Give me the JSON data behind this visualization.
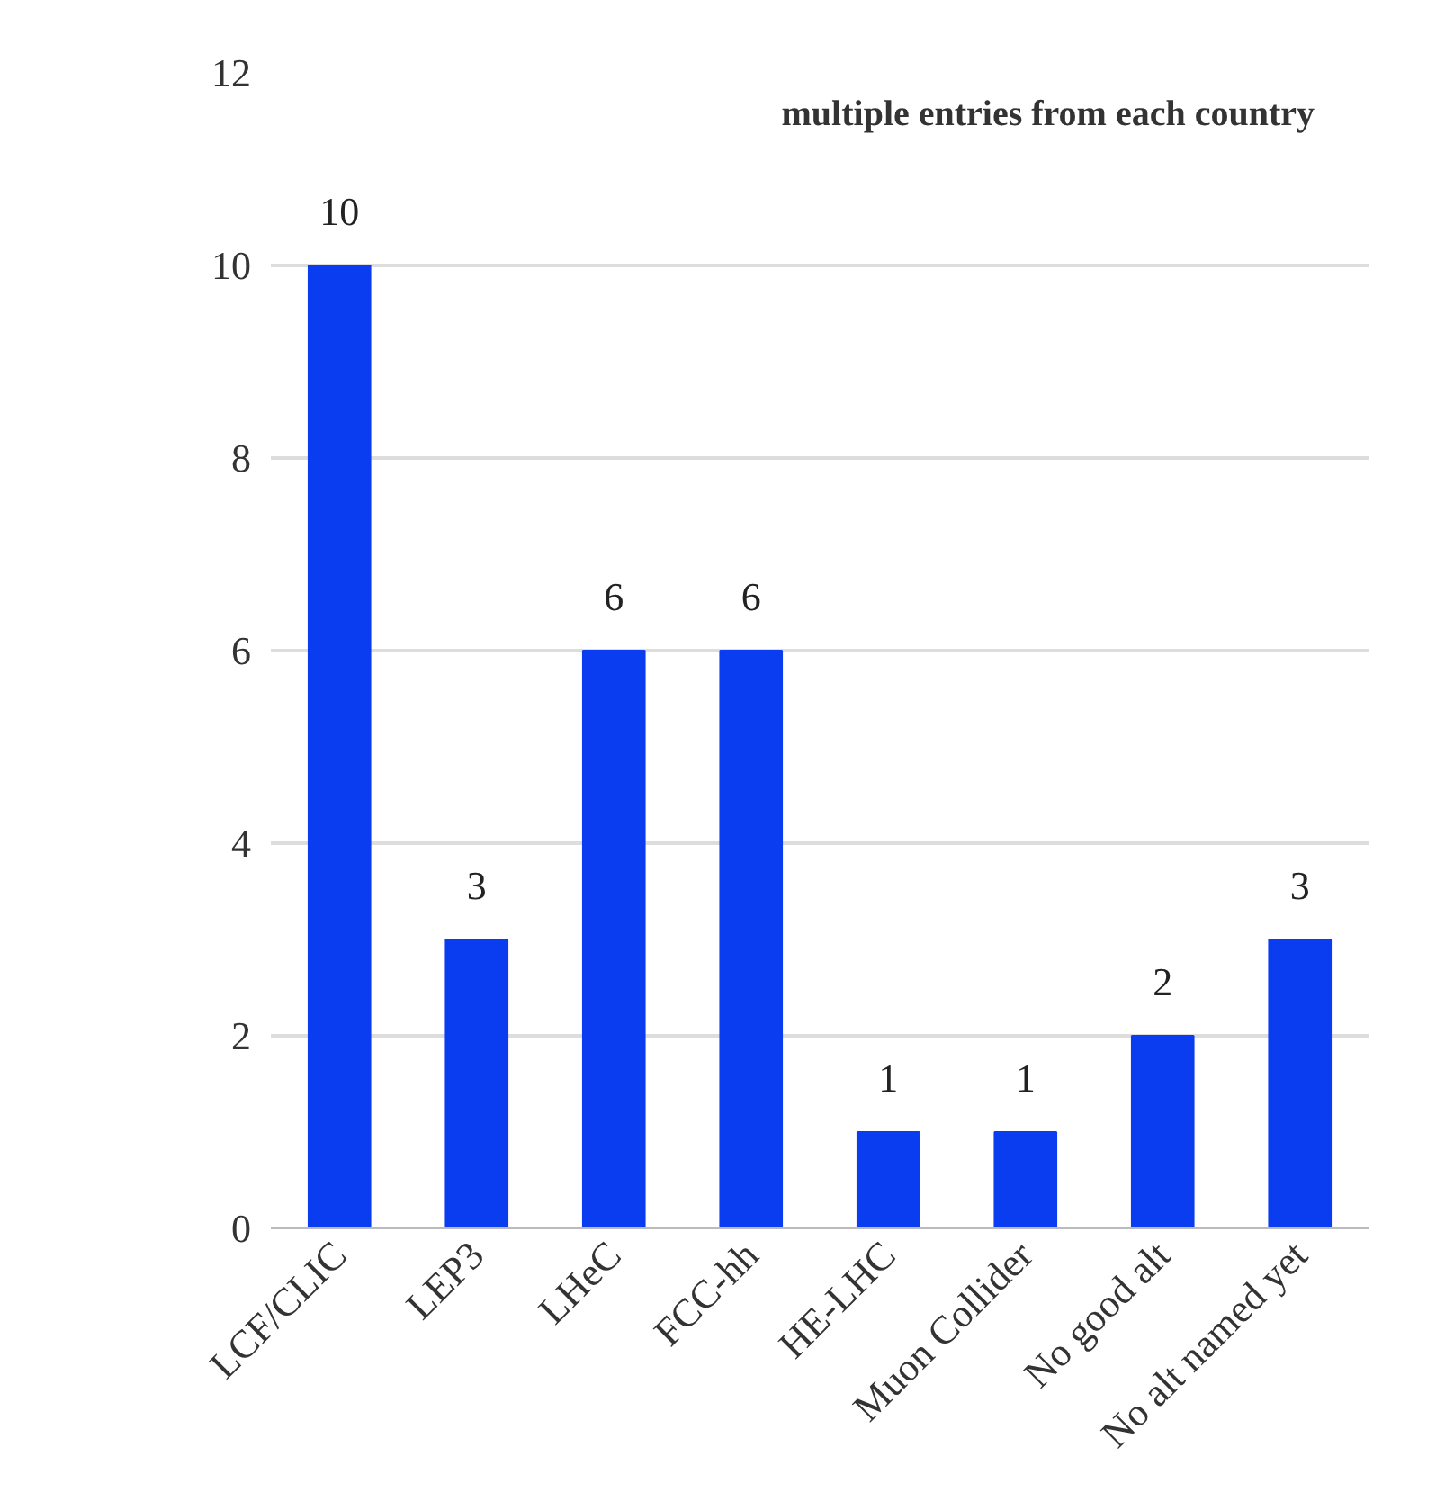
{
  "chart_data": {
    "type": "bar",
    "categories": [
      "LCF/CLIC",
      "LEP3",
      "LHeC",
      "FCC-hh",
      "HE-LHC",
      "Muon Collider",
      "No good alt",
      "No alt named yet"
    ],
    "values": [
      10,
      3,
      6,
      6,
      1,
      1,
      2,
      3
    ],
    "color": "#0a3cf0",
    "ylim": [
      0,
      12
    ],
    "yticks": [
      0,
      2,
      4,
      6,
      8,
      10,
      12
    ],
    "grid": "y",
    "data_labels": true,
    "annotations": [
      "multiple entries from each country"
    ]
  }
}
